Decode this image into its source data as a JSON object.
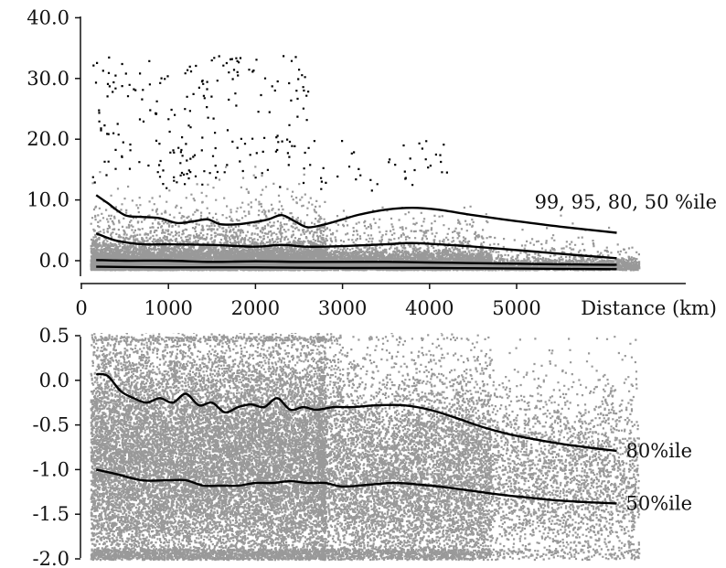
{
  "chart_data": [
    {
      "type": "scatter",
      "title": "",
      "xlabel": "Distance (km)",
      "ylabel": "",
      "xlim": [
        0,
        6500
      ],
      "ylim": [
        -2,
        43
      ],
      "x_ticks": [
        0,
        1000,
        2000,
        3000,
        4000,
        5000
      ],
      "x_tick_labels": [
        "0",
        "1000",
        "2000",
        "3000",
        "4000",
        "5000"
      ],
      "y_ticks": [
        0,
        10,
        20,
        30,
        40
      ],
      "y_tick_labels": [
        "0.0",
        "10.0",
        "20.0",
        "30.0",
        "40.0"
      ],
      "grid": false,
      "point_color": "#999999",
      "outlier_color": "#000000",
      "annotation": "99, 95, 80, 50 %ile",
      "series": [
        {
          "x": [
            170,
            300,
            500,
            700,
            900,
            1100,
            1300,
            1450,
            1600,
            1800,
            2000,
            2150,
            2300,
            2450,
            2600,
            2800,
            3000,
            3200,
            3500,
            3800,
            4100,
            4500,
            5000,
            5500,
            6150
          ],
          "values": [
            10.8,
            9.5,
            7.5,
            7.2,
            7.0,
            6.2,
            6.5,
            6.8,
            6.0,
            6.0,
            6.4,
            6.8,
            7.5,
            6.5,
            5.5,
            6.0,
            6.8,
            7.6,
            8.4,
            8.7,
            8.4,
            7.5,
            6.5,
            5.6,
            4.6
          ]
        },
        {
          "x": [
            170,
            400,
            700,
            1000,
            1500,
            2000,
            2300,
            2600,
            3000,
            3500,
            3800,
            4200,
            4700,
            5200,
            5700,
            6150
          ],
          "values": [
            4.5,
            3.3,
            2.7,
            2.7,
            2.6,
            2.3,
            2.6,
            2.3,
            2.4,
            2.7,
            2.9,
            2.6,
            2.1,
            1.5,
            0.9,
            0.4
          ]
        },
        {
          "x": [
            170,
            500,
            1000,
            1500,
            2000,
            2500,
            3000,
            3500,
            4000,
            4500,
            5000,
            5500,
            6150
          ],
          "values": [
            0.1,
            0.0,
            0.0,
            -0.2,
            -0.1,
            -0.2,
            -0.2,
            -0.2,
            -0.3,
            -0.4,
            -0.5,
            -0.6,
            -0.7
          ]
        },
        {
          "x": [
            170,
            1000,
            2000,
            3000,
            4000,
            5000,
            6150
          ],
          "values": [
            -1.0,
            -1.1,
            -1.1,
            -1.2,
            -1.2,
            -1.3,
            -1.4
          ]
        }
      ]
    },
    {
      "type": "scatter",
      "title": "",
      "xlabel": "",
      "ylabel": "",
      "xlim": [
        0,
        6500
      ],
      "ylim": [
        -2.0,
        0.5
      ],
      "y_ticks": [
        -2.0,
        -1.5,
        -1.0,
        -0.5,
        0.0,
        0.5
      ],
      "y_tick_labels": [
        "-2.0",
        "-1.5",
        "-1.0",
        "-0.5",
        "0.0",
        "0.5"
      ],
      "grid": false,
      "point_color": "#999999",
      "series": [
        {
          "name": "80%ile",
          "x": [
            170,
            300,
            450,
            600,
            750,
            900,
            1050,
            1200,
            1350,
            1500,
            1650,
            1800,
            1950,
            2100,
            2250,
            2400,
            2550,
            2700,
            2900,
            3100,
            3400,
            3700,
            4000,
            4300,
            4600,
            4900,
            5200,
            5500,
            5800,
            6150
          ],
          "values": [
            0.07,
            0.05,
            -0.12,
            -0.2,
            -0.25,
            -0.2,
            -0.25,
            -0.15,
            -0.28,
            -0.25,
            -0.36,
            -0.3,
            -0.27,
            -0.3,
            -0.2,
            -0.33,
            -0.3,
            -0.33,
            -0.3,
            -0.3,
            -0.28,
            -0.28,
            -0.33,
            -0.42,
            -0.52,
            -0.6,
            -0.66,
            -0.71,
            -0.75,
            -0.79
          ]
        },
        {
          "name": "50%ile",
          "x": [
            170,
            400,
            700,
            1000,
            1200,
            1400,
            1600,
            1800,
            2000,
            2200,
            2400,
            2600,
            2800,
            3000,
            3300,
            3600,
            3900,
            4200,
            4500,
            4800,
            5100,
            5400,
            5700,
            6150
          ],
          "values": [
            -1.0,
            -1.05,
            -1.12,
            -1.12,
            -1.12,
            -1.18,
            -1.18,
            -1.18,
            -1.15,
            -1.15,
            -1.13,
            -1.15,
            -1.15,
            -1.19,
            -1.17,
            -1.15,
            -1.17,
            -1.2,
            -1.24,
            -1.28,
            -1.31,
            -1.34,
            -1.36,
            -1.38
          ]
        }
      ]
    }
  ]
}
